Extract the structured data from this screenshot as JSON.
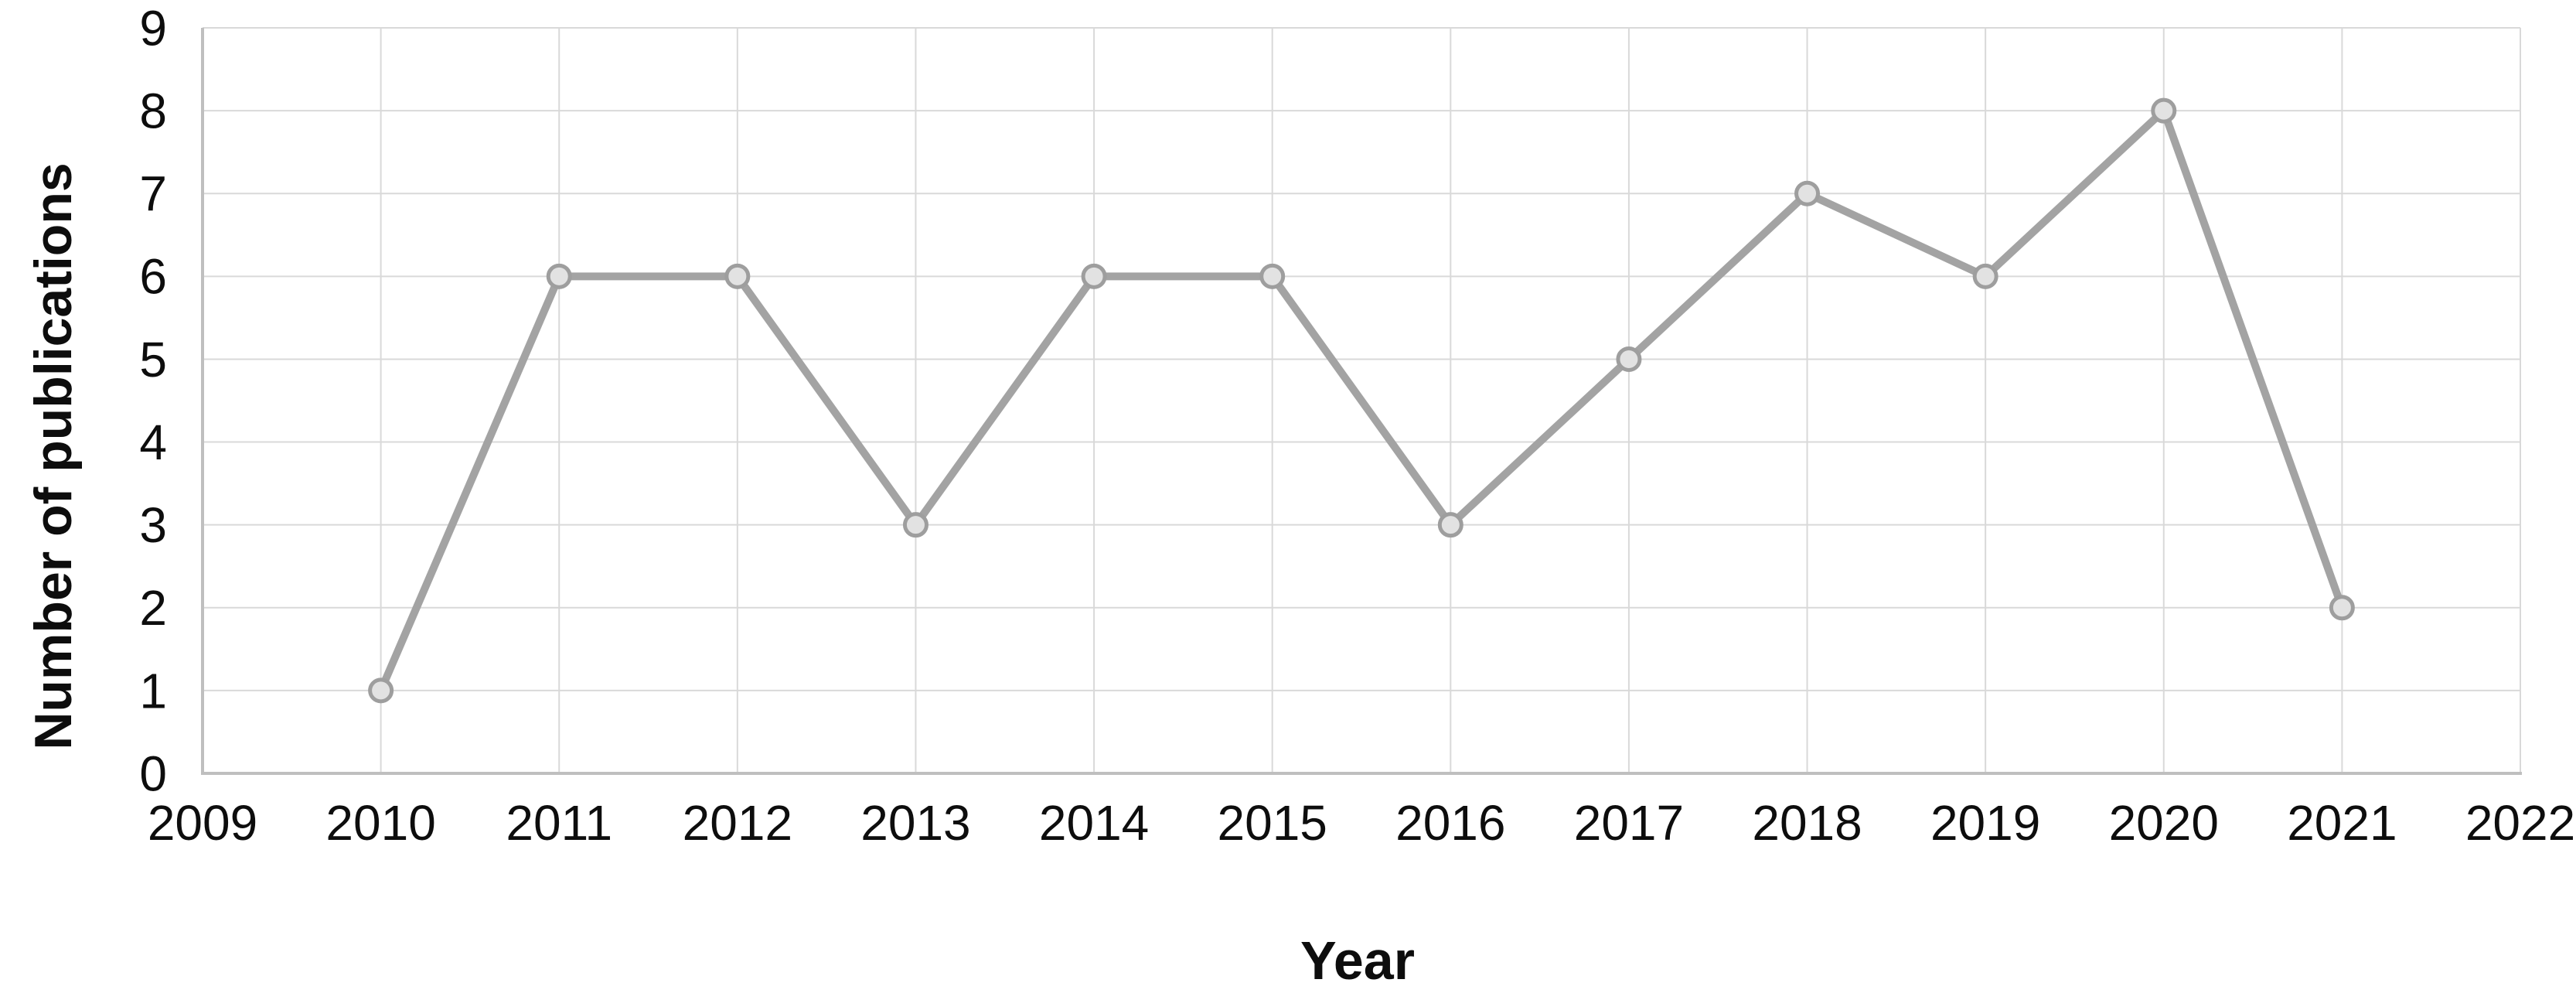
{
  "figure": {
    "y_axis_title": "Number of publications",
    "x_axis_title": "Year"
  },
  "chart_data": {
    "type": "line",
    "title": "",
    "xlabel": "Year",
    "ylabel": "Number of publications",
    "x": [
      2010,
      2011,
      2012,
      2013,
      2014,
      2015,
      2016,
      2017,
      2018,
      2019,
      2020,
      2021
    ],
    "values": [
      1,
      6,
      6,
      3,
      6,
      6,
      3,
      5,
      7,
      6,
      8,
      2
    ],
    "x_ticks": [
      2009,
      2010,
      2011,
      2012,
      2013,
      2014,
      2015,
      2016,
      2017,
      2018,
      2019,
      2020,
      2021,
      2022
    ],
    "y_ticks": [
      0,
      1,
      2,
      3,
      4,
      5,
      6,
      7,
      8,
      9
    ],
    "xlim": [
      2009,
      2022
    ],
    "ylim": [
      0,
      9
    ],
    "grid": true,
    "legend_position": "none",
    "marker_shape": "circle",
    "colors": {
      "line": "#a3a3a3",
      "marker_fill": "#e2e2e2",
      "marker_stroke": "#9e9e9e",
      "gridline": "#d9d9d9",
      "axis": "#bfbfbf",
      "text": "#0d0d0d"
    }
  }
}
